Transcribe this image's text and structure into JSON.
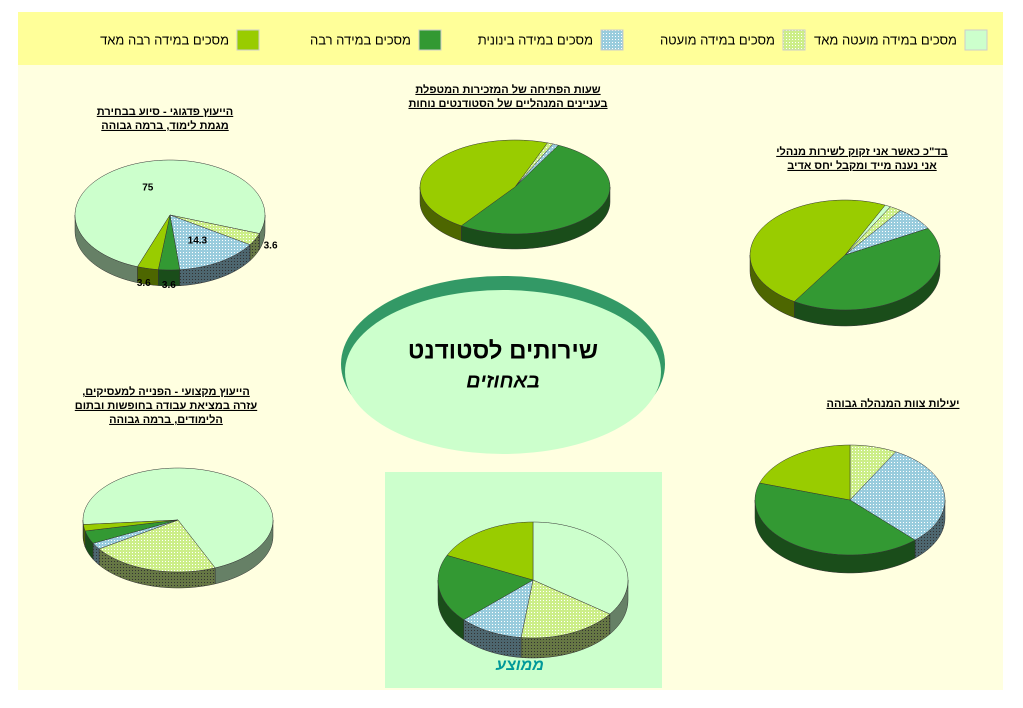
{
  "legend": {
    "categories": [
      "מסכים במידה מועטה מאד",
      "מסכים במידה מועטה",
      "מסכים במידה בינונית",
      "מסכים במידה רבה",
      "מסכים במידה רבה מאד"
    ],
    "colors": [
      "#ccffcc",
      "#ccee88",
      "#99ccdd",
      "#339933",
      "#99cc00"
    ],
    "dotted": [
      false,
      true,
      true,
      false,
      false
    ]
  },
  "center_title": "שירותים לסטודנט",
  "center_subtitle": "באחוזים",
  "chart_data": [
    {
      "type": "pie",
      "title": [
        "הייעוץ פדגוגי - סיוע בבחירת",
        "מגמת לימוד, ברמה גבוהה"
      ],
      "values": [
        75,
        3.6,
        14.3,
        3.6,
        3.6
      ],
      "data_labels": true
    },
    {
      "type": "pie",
      "title": [
        "שעות הפתיחה של המזכירות המטפלת",
        "בעניינים  המנהליים של הסטודנטים נוחות"
      ],
      "values": [
        0,
        1,
        1,
        52,
        46
      ],
      "data_labels": false
    },
    {
      "type": "pie",
      "title": [
        "בד\"כ כאשר אני זקוק לשירות מנהלי",
        "אני נענה מייד ומקבל יחס  אדיב"
      ],
      "values": [
        1,
        2,
        7,
        42,
        48
      ],
      "data_labels": false
    },
    {
      "type": "pie",
      "title": [
        "הייעוץ מקצועי - הפנייה למעסיקים,",
        "עזרה במציאת עבודה בחופשות ובתום",
        "הלימודים, ברמה גבוהה"
      ],
      "values": [
        70,
        22,
        2,
        4,
        2
      ],
      "data_labels": false
    },
    {
      "type": "pie",
      "title": [
        "יעילות צוות המנהלה גבוהה"
      ],
      "values": [
        0,
        8,
        30,
        42,
        20
      ],
      "data_labels": false
    },
    {
      "type": "pie",
      "title": [
        "ממוצע"
      ],
      "values": [
        35,
        17,
        11,
        19,
        18
      ],
      "data_labels": false
    }
  ]
}
